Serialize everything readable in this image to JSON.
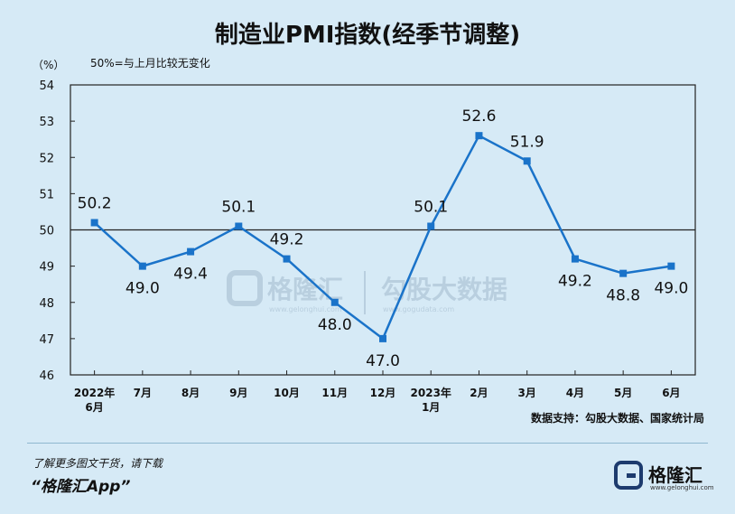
{
  "page": {
    "title": "制造业PMI指数(经季节调整)",
    "source": "数据支持：勾股大数据、国家统计局",
    "promo_line1": "了解更多图文干货，请下载",
    "promo_line2": "“格隆汇App”",
    "brand_name": "格隆汇",
    "brand_url": "www.gelonghui.com",
    "brand_icon": "gelonghui-logo-icon"
  },
  "chart_data": {
    "type": "line",
    "title": "制造业PMI指数(经季节调整)",
    "unit_label": "（%）",
    "note": "50%=与上月比较无变化",
    "categories": [
      [
        "2022年",
        "6月"
      ],
      [
        "7月"
      ],
      [
        "8月"
      ],
      [
        "9月"
      ],
      [
        "10月"
      ],
      [
        "11月"
      ],
      [
        "12月"
      ],
      [
        "2023年",
        "1月"
      ],
      [
        "2月"
      ],
      [
        "3月"
      ],
      [
        "4月"
      ],
      [
        "5月"
      ],
      [
        "6月"
      ]
    ],
    "series": [
      {
        "values": [
          50.2,
          49.0,
          49.4,
          50.1,
          49.2,
          48.0,
          47.0,
          50.1,
          52.6,
          51.9,
          49.2,
          48.8,
          49.0
        ]
      }
    ],
    "data_labels": [
      "50.2",
      "49.0",
      "49.4",
      "50.1",
      "49.2",
      "48.0",
      "47.0",
      "50.1",
      "52.6",
      "51.9",
      "49.2",
      "48.8",
      "49.0"
    ],
    "ylim": [
      46,
      54
    ],
    "yticks": [
      "54",
      "53",
      "52",
      "51",
      "50",
      "49",
      "48",
      "47",
      "46"
    ],
    "reference_line": 50,
    "line_color": "#1a73c9",
    "grid": false,
    "watermark_left": "格隆汇",
    "watermark_left_sub": "www.gelonghui.com",
    "watermark_right": "勾股大数据",
    "watermark_right_sub": "www.gogudata.com"
  }
}
